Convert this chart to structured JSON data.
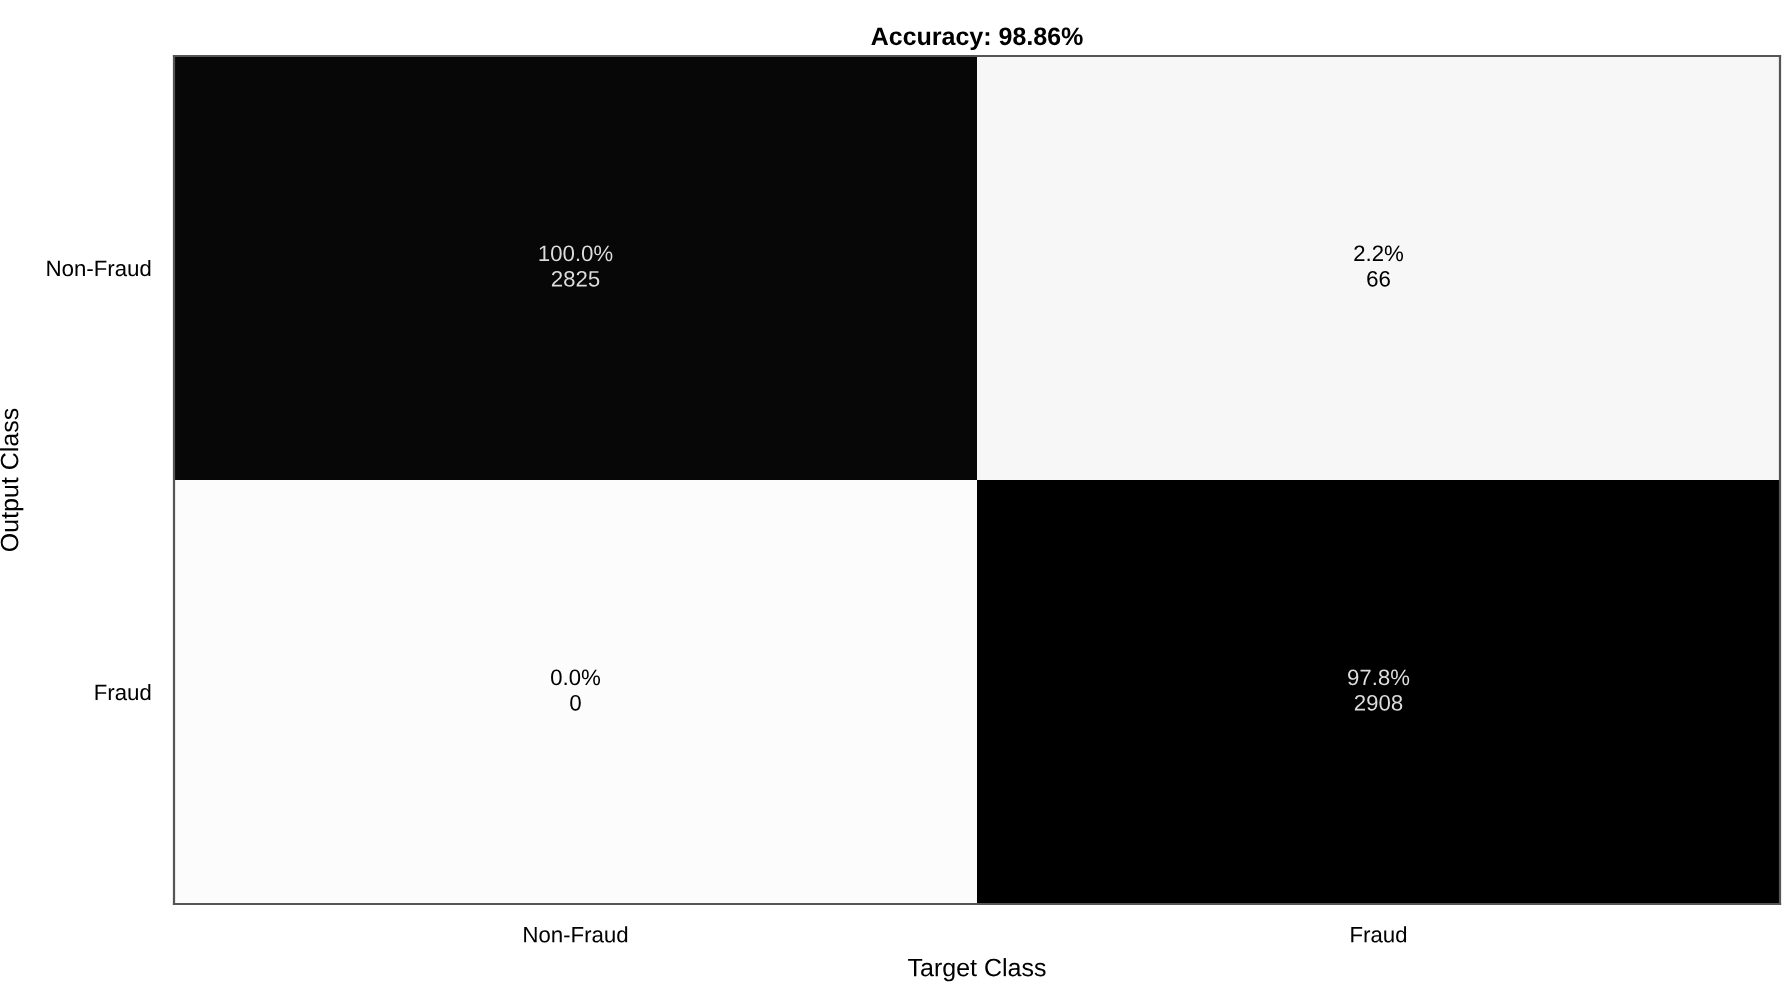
{
  "chart_data": {
    "type": "heatmap",
    "title": "Accuracy: 98.86%",
    "xlabel": "Target Class",
    "ylabel": "Output Class",
    "categories": [
      "Non-Fraud",
      "Fraud"
    ],
    "y_categories": [
      "Non-Fraud",
      "Fraud"
    ],
    "cells": [
      [
        2825,
        66
      ],
      [
        0,
        2908
      ]
    ],
    "data_labels": true,
    "annotations": [
      "100.0%",
      "2.2%",
      "0.0%",
      "97.8%"
    ]
  }
}
